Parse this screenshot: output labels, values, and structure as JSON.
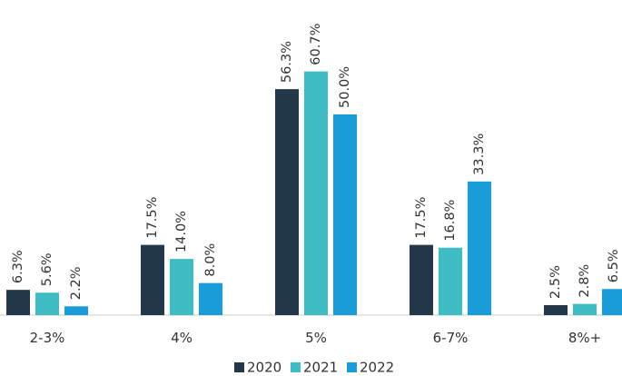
{
  "chart_data": {
    "type": "bar",
    "categories": [
      "2-3%",
      "4%",
      "5%",
      "6-7%",
      "8%+"
    ],
    "series": [
      {
        "name": "2020",
        "color": "#22384a",
        "values": [
          6.3,
          17.5,
          56.3,
          17.5,
          2.5
        ],
        "value_labels": [
          "6.3%",
          "17.5%",
          "56.3%",
          "17.5%",
          "2.5%"
        ]
      },
      {
        "name": "2021",
        "color": "#40bcc4",
        "values": [
          5.6,
          14.0,
          60.7,
          16.8,
          2.8
        ],
        "value_labels": [
          "5.6%",
          "14.0%",
          "60.7%",
          "16.8%",
          "2.8%"
        ]
      },
      {
        "name": "2022",
        "color": "#1a9cd8",
        "values": [
          2.2,
          8.0,
          50.0,
          33.3,
          6.5
        ],
        "value_labels": [
          "2.2%",
          "8.0%",
          "50.0%",
          "33.3%",
          "6.5%"
        ]
      }
    ]
  }
}
